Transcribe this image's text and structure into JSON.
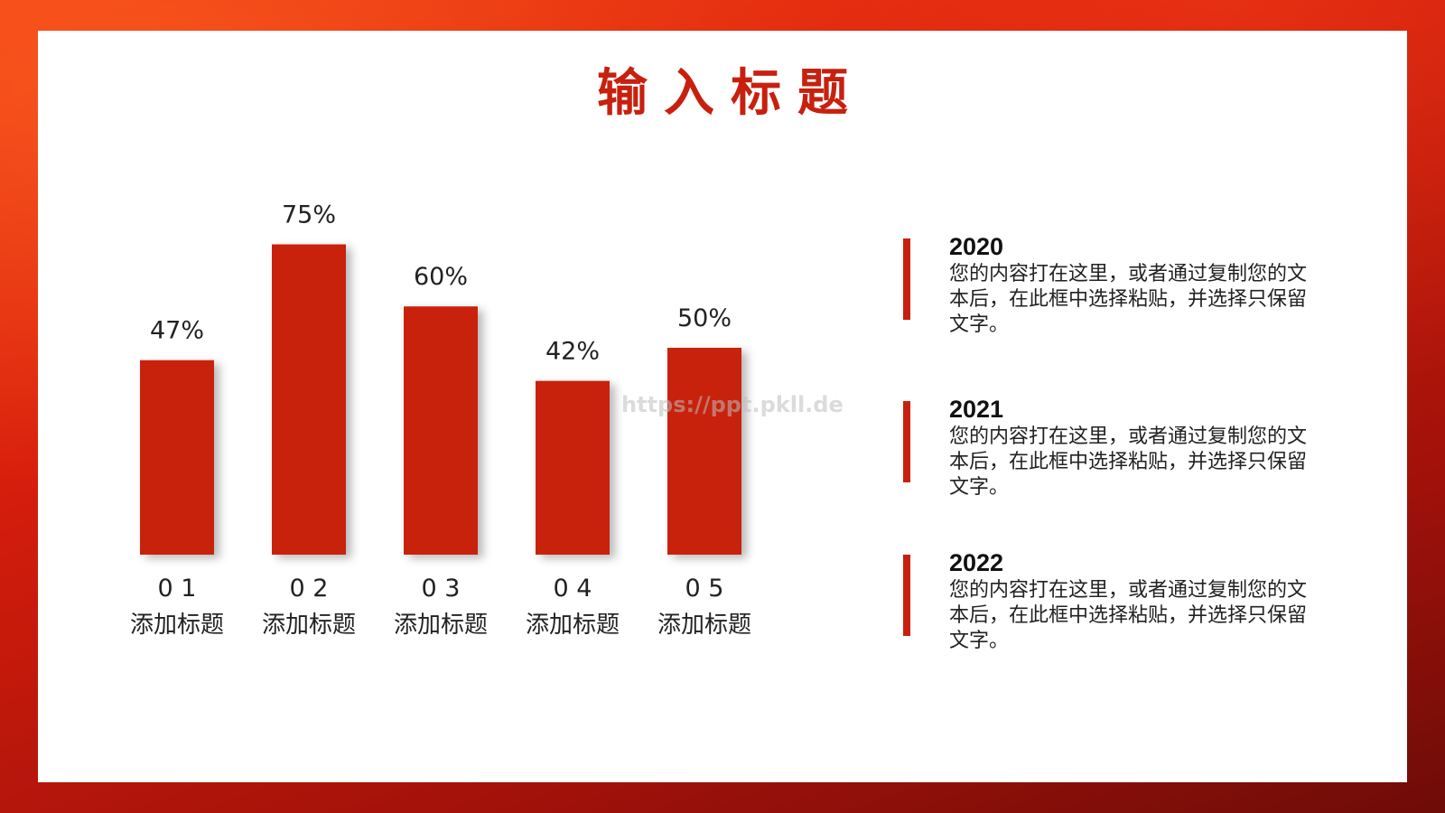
{
  "slide": {
    "title": "输入标题",
    "watermark": "https://ppt.pkll.de"
  },
  "chart_data": {
    "type": "bar",
    "categories": [
      "0 1",
      "0 2",
      "0 3",
      "0 4",
      "0 5"
    ],
    "category_sublabels": [
      "添加标题",
      "添加标题",
      "添加标题",
      "添加标题",
      "添加标题"
    ],
    "values": [
      47,
      75,
      60,
      42,
      50
    ],
    "value_labels": [
      "47%",
      "75%",
      "60%",
      "42%",
      "50%"
    ],
    "ylim": [
      0,
      100
    ],
    "grid": false,
    "bar_color": "#c8200f"
  },
  "info_items": [
    {
      "year": "2020",
      "text": "您的内容打在这里，或者通过复制您的文本后，在此框中选择粘贴，并选择只保留文字。"
    },
    {
      "year": "2021",
      "text": "您的内容打在这里，或者通过复制您的文本后，在此框中选择粘贴，并选择只保留文字。"
    },
    {
      "year": "2022",
      "text": "您的内容打在这里，或者通过复制您的文本后，在此框中选择粘贴，并选择只保留文字。"
    }
  ],
  "colors": {
    "accent": "#c8200f",
    "frame_dark": "#6e0c08",
    "frame_light": "#f23a10"
  }
}
